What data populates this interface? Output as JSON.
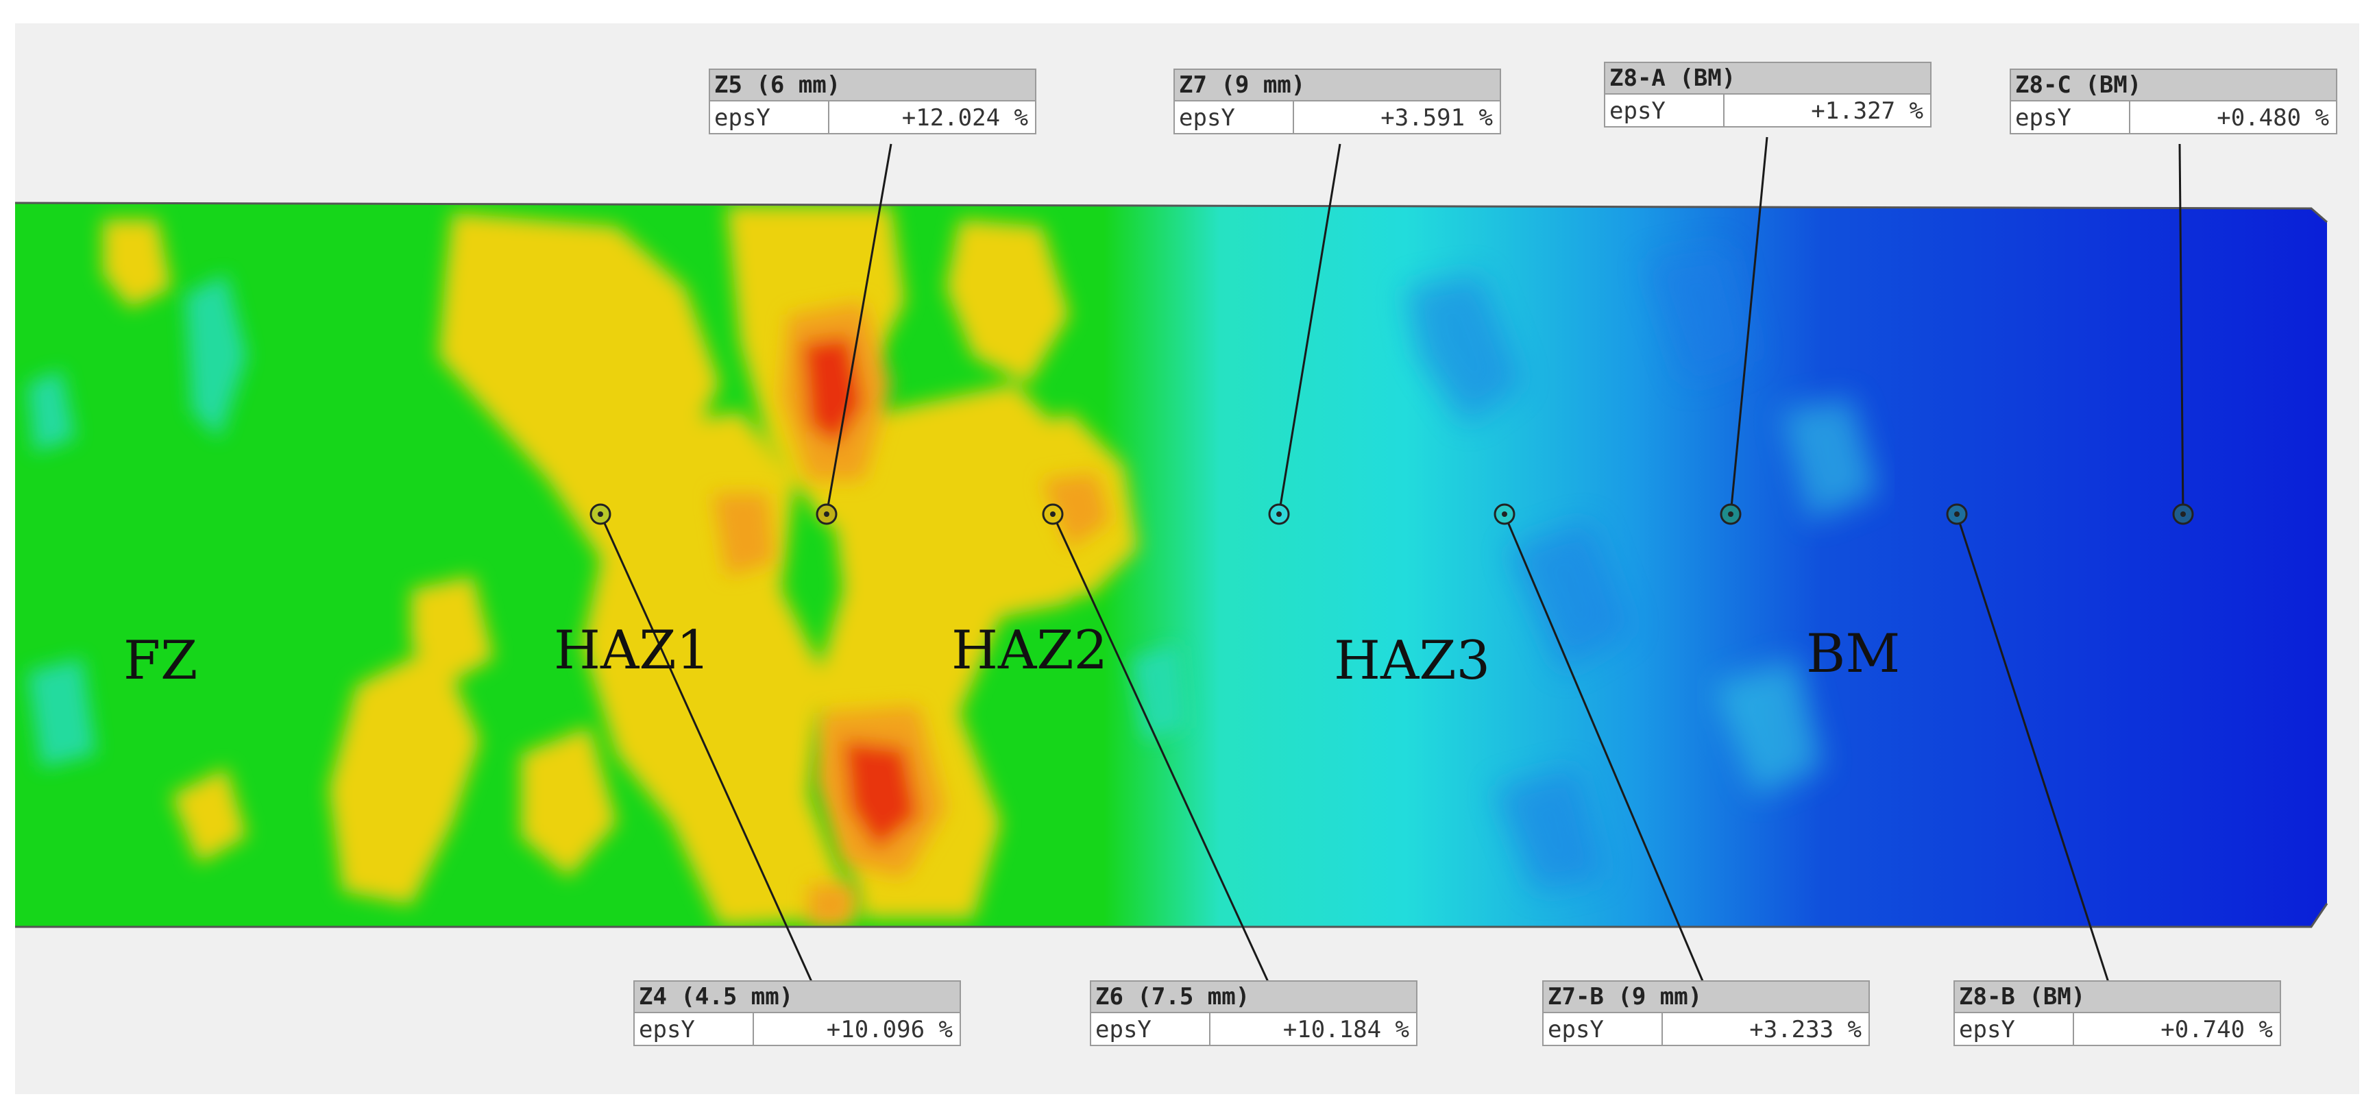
{
  "zones": [
    {
      "id": "fz",
      "label": "FZ"
    },
    {
      "id": "haz1",
      "label": "HAZ1"
    },
    {
      "id": "haz2",
      "label": "HAZ2"
    },
    {
      "id": "haz3",
      "label": "HAZ3"
    },
    {
      "id": "bm",
      "label": "BM"
    }
  ],
  "probes": [
    {
      "id": "z5",
      "name": "Z5 (6 mm)",
      "key": "epsY",
      "value": "+12.024 %"
    },
    {
      "id": "z7",
      "name": "Z7 (9 mm)",
      "key": "epsY",
      "value": "+3.591 %"
    },
    {
      "id": "z8a",
      "name": "Z8-A (BM)",
      "key": "epsY",
      "value": "+1.327 %"
    },
    {
      "id": "z8c",
      "name": "Z8-C (BM)",
      "key": "epsY",
      "value": "+0.480 %"
    },
    {
      "id": "z4",
      "name": "Z4 (4.5 mm)",
      "key": "epsY",
      "value": "+10.096 %"
    },
    {
      "id": "z6",
      "name": "Z6 (7.5 mm)",
      "key": "epsY",
      "value": "+10.184 %"
    },
    {
      "id": "z7b",
      "name": "Z7-B (9 mm)",
      "key": "epsY",
      "value": "+3.233 %"
    },
    {
      "id": "z8b",
      "name": "Z8-B (BM)",
      "key": "epsY",
      "value": "+0.740 %"
    }
  ],
  "colors": {
    "high": "#e8300a",
    "upper": "#f0c800",
    "mid": "#12d61a",
    "low": "#22dcd8",
    "lowest": "#0a1fd8"
  }
}
